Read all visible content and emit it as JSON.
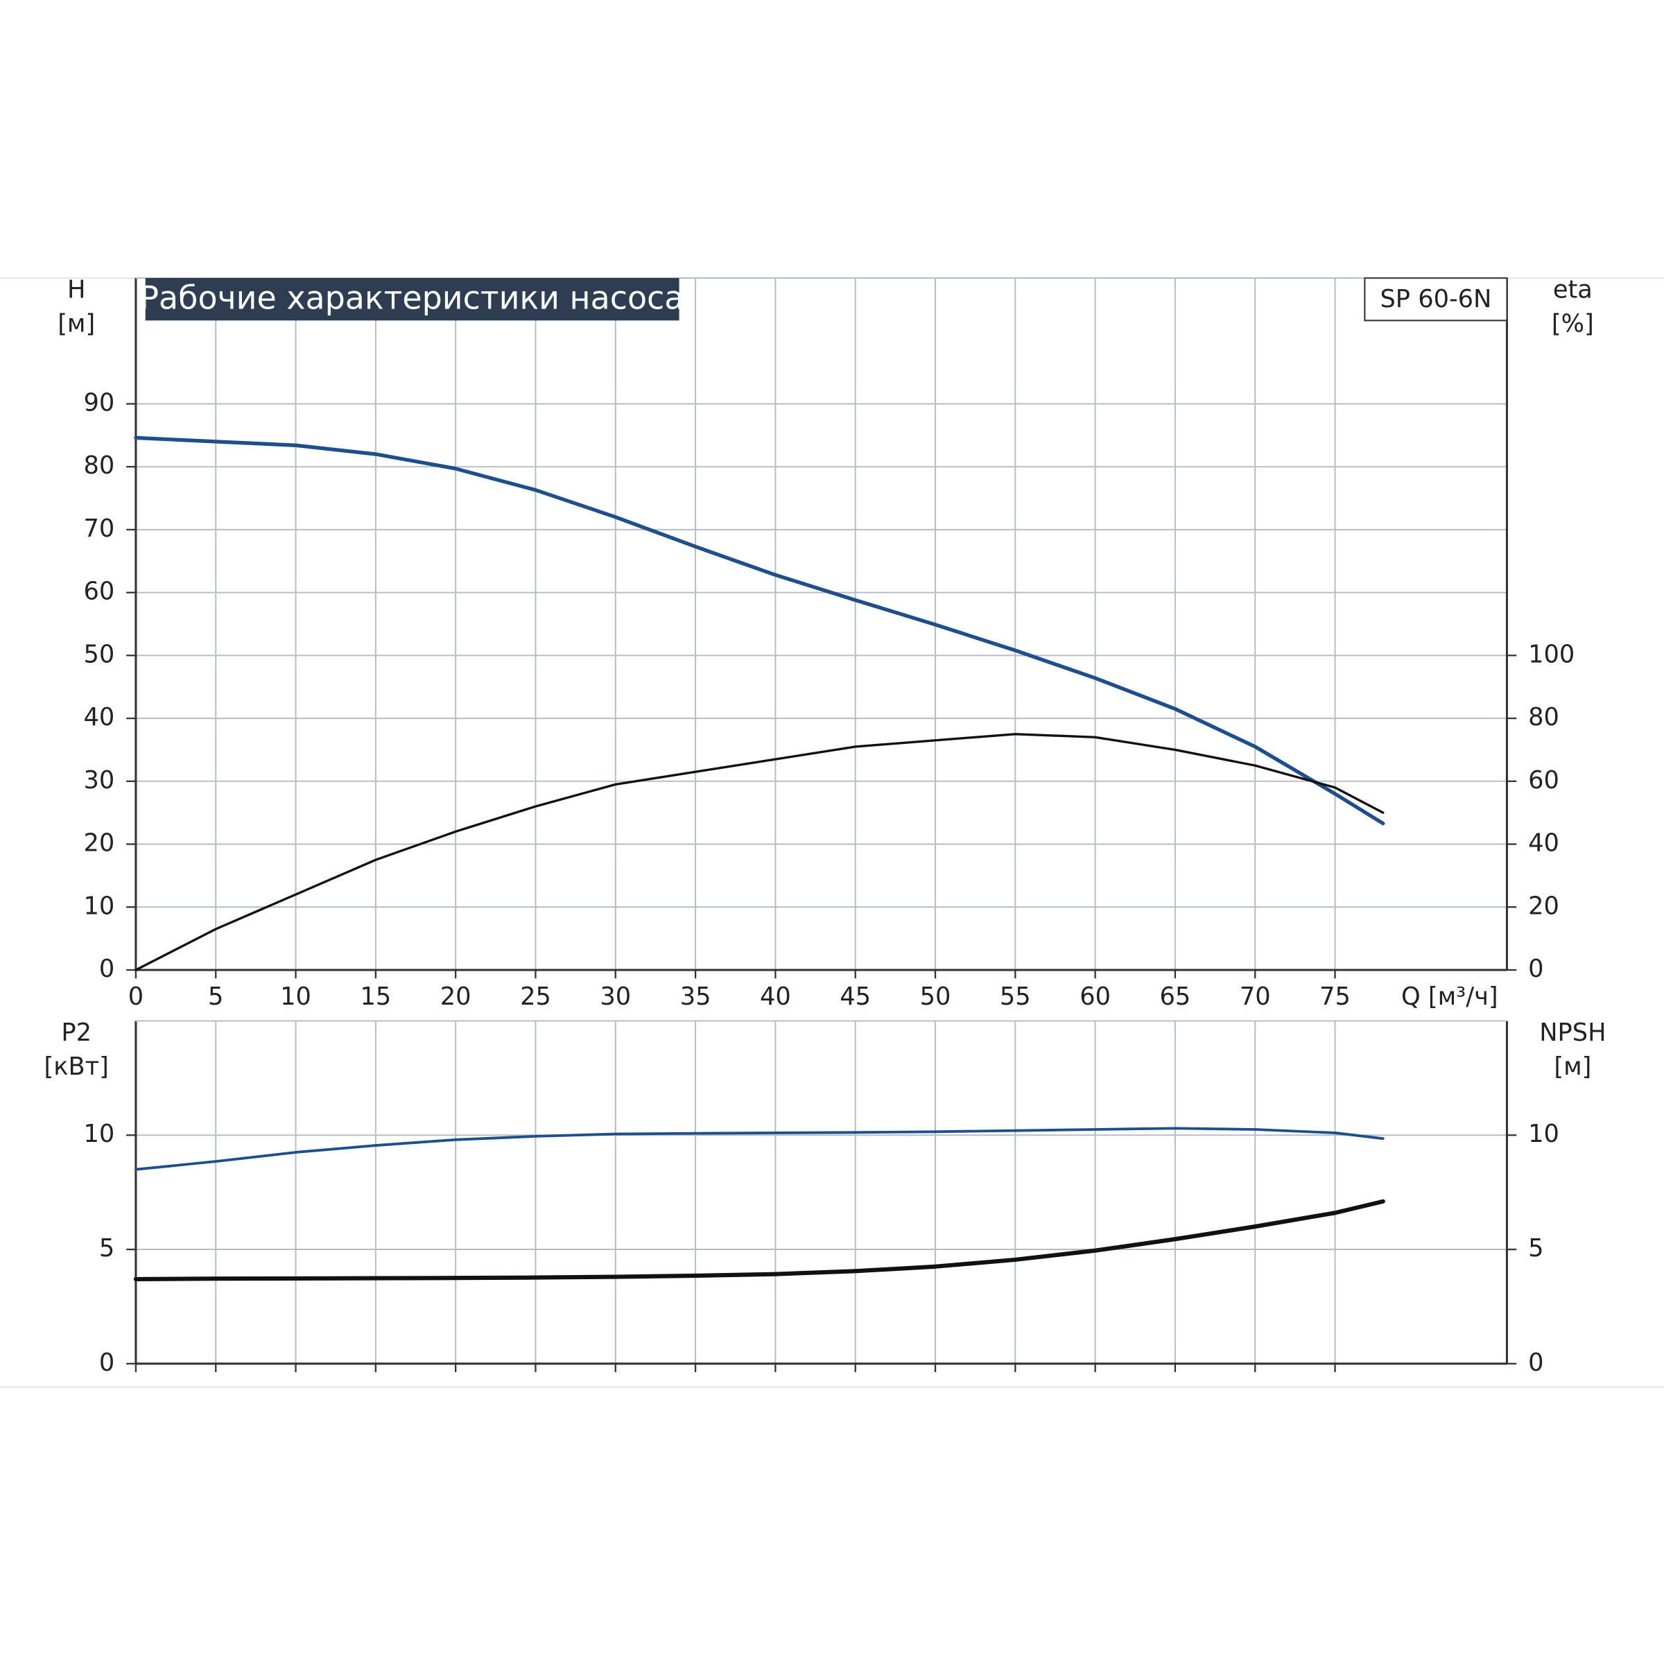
{
  "chart_data": [
    {
      "type": "line",
      "title": "Рабочие характеристики насоса",
      "annotation": "SP 60-6N",
      "y_label": [
        "H",
        "[м]"
      ],
      "y2_label": [
        "eta",
        "[%]"
      ],
      "x_label": "Q [м³/ч]",
      "x": [
        0,
        5,
        10,
        15,
        20,
        25,
        30,
        35,
        40,
        45,
        50,
        55,
        60,
        65,
        70,
        75,
        78
      ],
      "series": [
        {
          "color": "#1f4e8c",
          "axis": "y",
          "values": [
            84.6,
            84,
            83.4,
            82,
            79.7,
            76.3,
            72,
            67.3,
            62.8,
            58.8,
            54.9,
            50.8,
            46.4,
            41.5,
            35.5,
            28,
            23.3
          ]
        },
        {
          "color": "#111111",
          "axis": "y2",
          "values": [
            0,
            13,
            24,
            35,
            44,
            52,
            59,
            63,
            67,
            71,
            73,
            75,
            74,
            70,
            65,
            58,
            50
          ]
        }
      ],
      "xlim": [
        0,
        85.75
      ],
      "xticks": [
        0,
        5,
        10,
        15,
        20,
        25,
        30,
        35,
        40,
        45,
        50,
        55,
        60,
        65,
        70,
        75
      ],
      "ylim": [
        0,
        110
      ],
      "yticks": [
        0,
        10,
        20,
        30,
        40,
        50,
        60,
        70,
        80,
        90
      ],
      "y2lim": [
        0,
        220
      ],
      "y2ticks": [
        0,
        20,
        40,
        60,
        80,
        100
      ],
      "grid": true
    },
    {
      "type": "line",
      "y_label": [
        "P2",
        "[кВт]"
      ],
      "y2_label": [
        "NPSH",
        "[м]"
      ],
      "x": [
        0,
        5,
        10,
        15,
        20,
        25,
        30,
        35,
        40,
        45,
        50,
        55,
        60,
        65,
        70,
        75,
        78
      ],
      "series": [
        {
          "color": "#1f4e8c",
          "axis": "y",
          "values": [
            8.5,
            8.85,
            9.25,
            9.55,
            9.8,
            9.95,
            10.05,
            10.08,
            10.1,
            10.12,
            10.15,
            10.2,
            10.25,
            10.3,
            10.25,
            10.1,
            9.85
          ]
        },
        {
          "color": "#111111",
          "axis": "y2",
          "values": [
            3.7,
            3.72,
            3.73,
            3.74,
            3.75,
            3.77,
            3.8,
            3.85,
            3.92,
            4.05,
            4.25,
            4.55,
            4.95,
            5.45,
            6.0,
            6.6,
            7.1
          ]
        }
      ],
      "xlim": [
        0,
        85.75
      ],
      "xticks": [
        0,
        5,
        10,
        15,
        20,
        25,
        30,
        35,
        40,
        45,
        50,
        55,
        60,
        65,
        70,
        75
      ],
      "ylim": [
        0,
        15
      ],
      "yticks": [
        0,
        5,
        10
      ],
      "y2lim": [
        0,
        15
      ],
      "y2ticks": [
        0,
        5,
        10
      ],
      "grid": true
    }
  ]
}
